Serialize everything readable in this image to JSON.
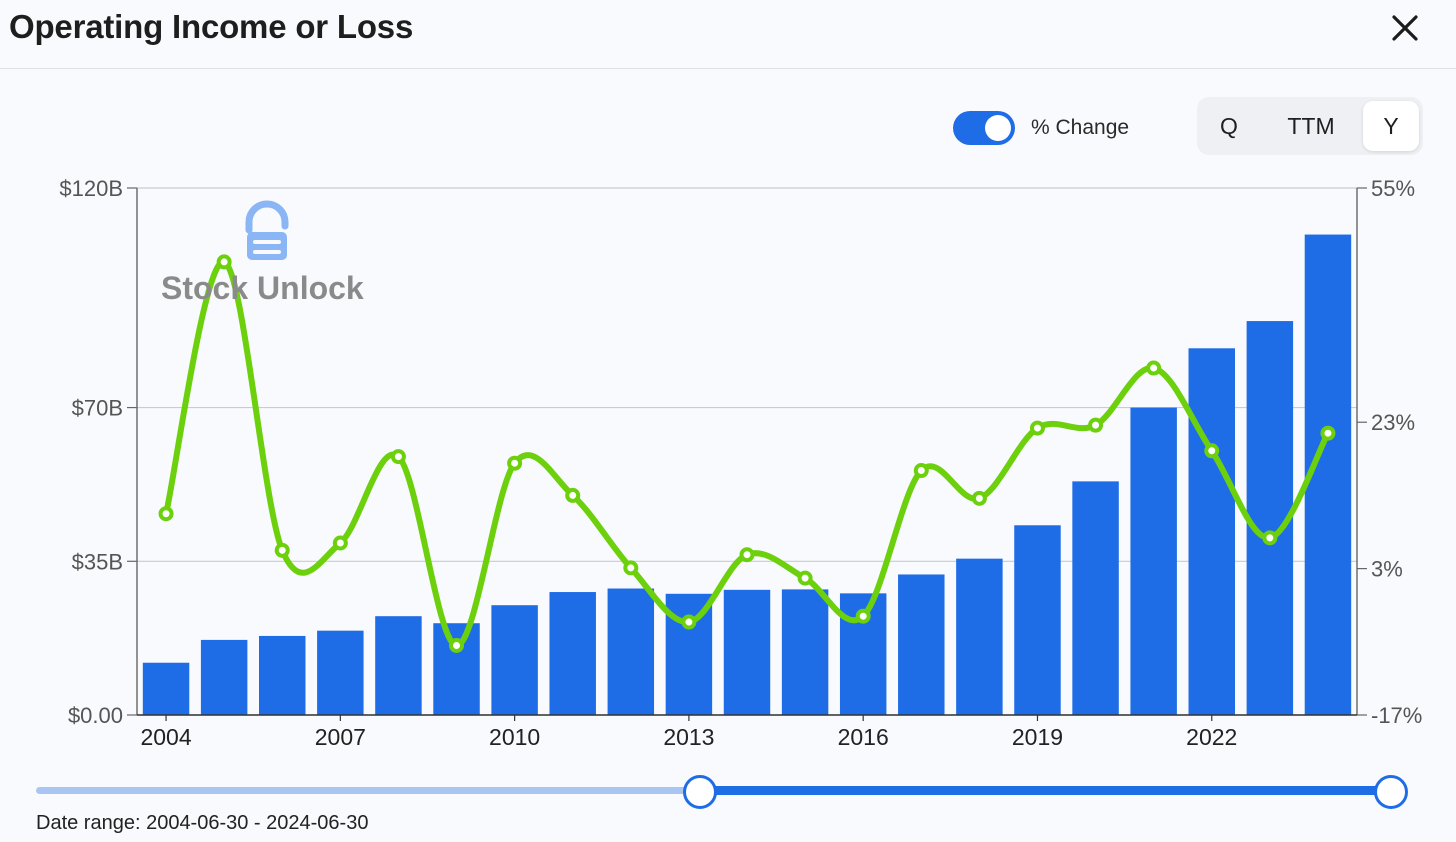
{
  "header": {
    "title": "Operating Income or Loss",
    "close_icon": "close-icon"
  },
  "controls": {
    "toggle_label": "% Change",
    "toggle_on": true,
    "period_options": [
      "Q",
      "TTM",
      "Y"
    ],
    "selected_period": "Y"
  },
  "watermark": {
    "text": "Stock Unlock",
    "logo_icon": "stock-unlock-logo-icon"
  },
  "slider": {
    "date_range_label": "Date range: 2004-06-30 - 2024-06-30",
    "handle_positions_fraction": [
      0.48,
      1.0
    ]
  },
  "colors": {
    "bar": "#1f6de6",
    "line": "#6cd00c",
    "accent": "#1f6de6"
  },
  "chart_data": {
    "type": "bar",
    "title": "",
    "xlabel": "",
    "ylabel": "",
    "categories": [
      "2004",
      "2005",
      "2006",
      "2007",
      "2008",
      "2009",
      "2010",
      "2011",
      "2012",
      "2013",
      "2014",
      "2015",
      "2016",
      "2017",
      "2018",
      "2019",
      "2020",
      "2021",
      "2022",
      "2023",
      "2024"
    ],
    "x_tick_labels": [
      "2004",
      "2007",
      "2010",
      "2013",
      "2016",
      "2019",
      "2022"
    ],
    "y_tick_labels": [
      "$0.00",
      "$35B",
      "$70B",
      "$120B"
    ],
    "y_ticks": [
      0,
      35,
      70,
      120
    ],
    "y_right_tick_labels": [
      "-17%",
      "3%",
      "23%",
      "55%"
    ],
    "y_right_ticks": [
      -17,
      3,
      23,
      55
    ],
    "ylim": [
      0,
      120
    ],
    "y_right_lim": [
      -17,
      55
    ],
    "grid": true,
    "series": [
      {
        "type": "bar",
        "axis": "left",
        "values": [
          11.9,
          17.1,
          18.0,
          19.2,
          22.5,
          20.9,
          25.0,
          28.0,
          28.8,
          27.6,
          28.5,
          28.6,
          27.7,
          32.0,
          35.6,
          43.2,
          53.2,
          70.0,
          83.5,
          89.7,
          109.4
        ]
      },
      {
        "type": "line",
        "axis": "right",
        "values": [
          10.5,
          44.9,
          5.5,
          6.5,
          18.3,
          -7.5,
          17.4,
          13.0,
          3.1,
          -4.3,
          4.9,
          1.7,
          -3.5,
          16.4,
          12.6,
          22.2,
          22.6,
          30.4,
          19.1,
          7.2,
          21.5
        ]
      }
    ]
  }
}
